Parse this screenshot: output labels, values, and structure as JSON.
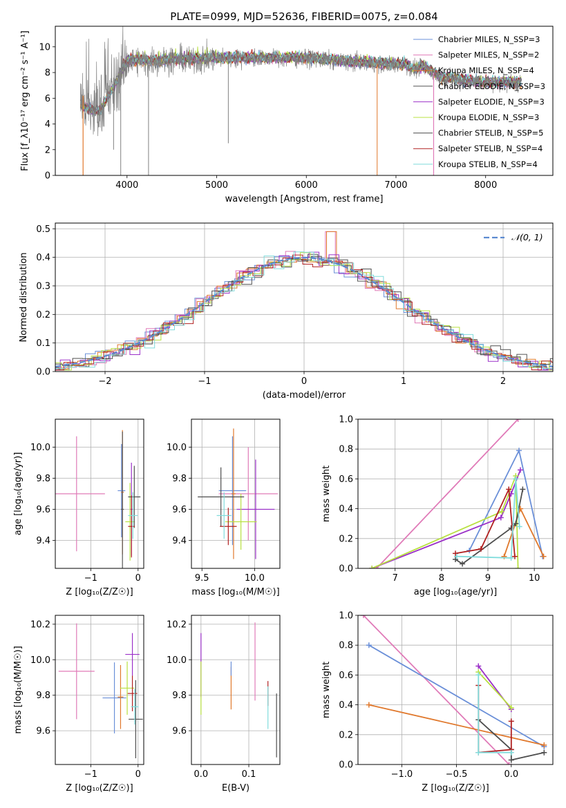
{
  "figure_title": "PLATE=0999, MJD=52636, FIBERID=0075, z=0.084",
  "colors": {
    "chabrier_miles": "#6a8fd8",
    "salpeter_miles": "#e07ab8",
    "kroupa_miles": "#e0782c",
    "chabrier_elodie": "#555555",
    "salpeter_elodie": "#9b30c8",
    "kroupa_elodie": "#b8e040",
    "chabrier_stelib": "#4d4d4d",
    "salpeter_stelib": "#b02020",
    "kroupa_stelib": "#80dcdc",
    "observed": "#808080",
    "normal": "#5b8ad0"
  },
  "chart_data": [
    {
      "id": "spectrum",
      "type": "line",
      "title": "PLATE=0999, MJD=52636, FIBERID=0075, z=0.084",
      "xlabel": "wavelength [Angstrom, rest frame]",
      "ylabel": "Flux [f_λ10⁻¹⁷ erg cm⁻² s⁻¹ A⁻¹]",
      "xlim": [
        3200,
        8750
      ],
      "ylim": [
        0,
        11.6
      ],
      "xticks": [
        4000,
        5000,
        6000,
        7000,
        8000
      ],
      "yticks": [
        0,
        2,
        4,
        6,
        8,
        10
      ],
      "legend_position": "top-right",
      "legend": [
        {
          "label": "Chabrier MILES, N_SSP=3",
          "color_key": "chabrier_miles"
        },
        {
          "label": "Salpeter MILES, N_SSP=2",
          "color_key": "salpeter_miles"
        },
        {
          "label": "Kroupa MILES, N_SSP=4",
          "color_key": "kroupa_miles"
        },
        {
          "label": "Chabrier ELODIE, N_SSP=3",
          "color_key": "chabrier_elodie"
        },
        {
          "label": "Salpeter ELODIE, N_SSP=3",
          "color_key": "salpeter_elodie"
        },
        {
          "label": "Kroupa ELODIE, N_SSP=3",
          "color_key": "kroupa_elodie"
        },
        {
          "label": "Chabrier STELIB, N_SSP=5",
          "color_key": "chabrier_stelib"
        },
        {
          "label": "Salpeter STELIB, N_SSP=4",
          "color_key": "salpeter_stelib"
        },
        {
          "label": "Kroupa STELIB, N_SSP=4",
          "color_key": "kroupa_stelib"
        }
      ],
      "observed_continuum": {
        "x": [
          3480,
          3600,
          3700,
          3800,
          3900,
          4000,
          4100,
          4300,
          4500,
          4800,
          5000,
          5500,
          6000,
          6500,
          7000,
          7100,
          7200,
          7300,
          7500,
          8000,
          8400
        ],
        "y": [
          5.6,
          5.1,
          5.0,
          6.3,
          7.5,
          8.9,
          8.9,
          8.9,
          9.0,
          9.0,
          9.1,
          9.1,
          9.1,
          8.8,
          8.6,
          8.6,
          8.2,
          8.5,
          7.6,
          7.2,
          7.2
        ]
      },
      "dips": [
        {
          "x": 3850,
          "y": 2.0
        },
        {
          "x": 3930,
          "y": 0.0
        },
        {
          "x": 4240,
          "y": 0.0
        },
        {
          "x": 5130,
          "y": 2.5
        },
        {
          "x": 6790,
          "y": 0.0
        }
      ]
    },
    {
      "id": "residuals",
      "type": "line",
      "xlabel": "(data-model)/error",
      "ylabel": "Normed distribution",
      "xlim": [
        -2.5,
        2.5
      ],
      "ylim": [
        0,
        0.52
      ],
      "xticks": [
        -2,
        -1,
        0,
        1,
        2
      ],
      "yticks": [
        0.0,
        0.1,
        0.2,
        0.3,
        0.4,
        0.5
      ],
      "grid": true,
      "legend_position": "top-right",
      "legend": [
        {
          "label": "𝒩(0, 1)",
          "color_key": "normal"
        }
      ],
      "bin_width": 0.1
    },
    {
      "id": "age_vs_z",
      "type": "scatter",
      "xlabel": "Z [log₁₀(Z/Z☉)]",
      "ylabel": "age  [log₁₀(age/yr)]",
      "xlim": [
        -1.75,
        0.12
      ],
      "ylim": [
        9.22,
        10.18
      ],
      "xticks": [
        -1,
        0
      ],
      "yticks": [
        9.4,
        9.6,
        9.8,
        10.0
      ],
      "grid": true,
      "points": [
        {
          "color_key": "salpeter_miles",
          "x": -1.3,
          "y": 9.7,
          "xerr": 0.6,
          "yerr": 0.37
        },
        {
          "color_key": "chabrier_miles",
          "x": -0.35,
          "y": 9.72,
          "xerr": 0.08,
          "yerr": 0.3
        },
        {
          "color_key": "kroupa_miles",
          "x": -0.33,
          "y": 9.71,
          "xerr": 0.03,
          "yerr": 0.4
        },
        {
          "color_key": "salpeter_elodie",
          "x": -0.14,
          "y": 9.6,
          "xerr": 0.03,
          "yerr": 0.3
        },
        {
          "color_key": "kroupa_elodie",
          "x": -0.17,
          "y": 9.52,
          "xerr": 0.1,
          "yerr": 0.25
        },
        {
          "color_key": "chabrier_stelib",
          "x": -0.08,
          "y": 9.68,
          "xerr": 0.13,
          "yerr": 0.2
        },
        {
          "color_key": "salpeter_stelib",
          "x": -0.14,
          "y": 9.49,
          "xerr": 0.07,
          "yerr": 0.2
        },
        {
          "color_key": "kroupa_stelib",
          "x": -0.11,
          "y": 9.56,
          "xerr": 0.1,
          "yerr": 0.15
        },
        {
          "color_key": "chabrier_elodie",
          "x": -0.33,
          "y": 9.6,
          "xerr": 0.03,
          "yerr": 0.5
        }
      ]
    },
    {
      "id": "age_vs_mass",
      "type": "scatter",
      "xlabel": "mass [log₁₀(M/M☉)]",
      "ylabel": "",
      "xlim": [
        9.4,
        10.24
      ],
      "ylim": [
        9.22,
        10.18
      ],
      "xticks": [
        9.5,
        10.0
      ],
      "yticks": [
        9.4,
        9.6,
        9.8,
        10.0
      ],
      "grid": true,
      "points": [
        {
          "color_key": "salpeter_miles",
          "x": 9.94,
          "y": 9.7,
          "xerr": 0.28,
          "yerr": 0.3
        },
        {
          "color_key": "chabrier_miles",
          "x": 9.79,
          "y": 9.72,
          "xerr": 0.13,
          "yerr": 0.35
        },
        {
          "color_key": "kroupa_miles",
          "x": 9.8,
          "y": 9.7,
          "xerr": 0.02,
          "yerr": 0.42
        },
        {
          "color_key": "salpeter_elodie",
          "x": 10.01,
          "y": 9.6,
          "xerr": 0.18,
          "yerr": 0.32
        },
        {
          "color_key": "kroupa_elodie",
          "x": 9.87,
          "y": 9.52,
          "xerr": 0.15,
          "yerr": 0.18
        },
        {
          "color_key": "chabrier_stelib",
          "x": 9.68,
          "y": 9.68,
          "xerr": 0.22,
          "yerr": 0.19
        },
        {
          "color_key": "salpeter_stelib",
          "x": 9.75,
          "y": 9.49,
          "xerr": 0.08,
          "yerr": 0.12
        },
        {
          "color_key": "kroupa_stelib",
          "x": 9.71,
          "y": 9.56,
          "xerr": 0.07,
          "yerr": 0.15
        }
      ]
    },
    {
      "id": "weight_vs_age",
      "type": "line",
      "xlabel": "age  [log₁₀(age/yr)]",
      "ylabel": "mass weight",
      "xlim": [
        6.2,
        10.4
      ],
      "ylim": [
        0,
        1.0
      ],
      "xticks": [
        7,
        8,
        9,
        10
      ],
      "yticks": [
        0.0,
        0.2,
        0.4,
        0.6,
        0.8,
        1.0
      ],
      "grid": true,
      "series": [
        {
          "color_key": "salpeter_miles",
          "x": [
            6.6,
            9.65
          ],
          "y": [
            0.0,
            1.0
          ]
        },
        {
          "color_key": "chabrier_miles",
          "x": [
            8.6,
            9.67,
            10.18
          ],
          "y": [
            0.12,
            0.79,
            0.08
          ]
        },
        {
          "color_key": "kroupa_miles",
          "x": [
            9.35,
            9.7,
            10.2
          ],
          "y": [
            0.08,
            0.4,
            0.08
          ]
        },
        {
          "color_key": "salpeter_elodie",
          "x": [
            6.5,
            9.28,
            9.5,
            9.7
          ],
          "y": [
            0.0,
            0.34,
            0.5,
            0.66
          ]
        },
        {
          "color_key": "kroupa_elodie",
          "x": [
            6.5,
            9.3,
            9.6,
            9.65
          ],
          "y": [
            0.0,
            0.38,
            0.62,
            0.0
          ]
        },
        {
          "color_key": "chabrier_stelib",
          "x": [
            8.3,
            8.45,
            9.5,
            9.6,
            9.75
          ],
          "y": [
            0.06,
            0.03,
            0.27,
            0.3,
            0.53
          ]
        },
        {
          "color_key": "salpeter_stelib",
          "x": [
            8.3,
            8.85,
            9.45,
            9.58
          ],
          "y": [
            0.1,
            0.13,
            0.53,
            0.08
          ]
        },
        {
          "color_key": "kroupa_stelib",
          "x": [
            8.33,
            9.5,
            9.6,
            9.68
          ],
          "y": [
            0.08,
            0.07,
            0.6,
            0.28
          ]
        }
      ]
    },
    {
      "id": "mass_vs_z",
      "type": "scatter",
      "xlabel": "Z [log₁₀(Z/Z☉)]",
      "ylabel": "mass [log₁₀(M/M☉)]",
      "xlim": [
        -1.75,
        0.12
      ],
      "ylim": [
        9.41,
        10.25
      ],
      "xticks": [
        -1,
        0
      ],
      "yticks": [
        9.6,
        9.8,
        10.0,
        10.2
      ],
      "grid": true,
      "points": [
        {
          "color_key": "salpeter_miles",
          "x": -1.3,
          "y": 9.935,
          "xerr": 0.38,
          "yerr": 0.27
        },
        {
          "color_key": "chabrier_miles",
          "x": -0.5,
          "y": 9.785,
          "xerr": 0.25,
          "yerr": 0.2
        },
        {
          "color_key": "kroupa_miles",
          "x": -0.37,
          "y": 9.79,
          "xerr": 0.06,
          "yerr": 0.18
        },
        {
          "color_key": "salpeter_elodie",
          "x": -0.12,
          "y": 10.03,
          "xerr": 0.15,
          "yerr": 0.12
        },
        {
          "color_key": "kroupa_elodie",
          "x": -0.23,
          "y": 9.84,
          "xerr": 0.15,
          "yerr": 0.15
        },
        {
          "color_key": "chabrier_stelib",
          "x": -0.05,
          "y": 9.665,
          "xerr": 0.15,
          "yerr": 0.22
        },
        {
          "color_key": "salpeter_stelib",
          "x": -0.12,
          "y": 9.81,
          "xerr": 0.1,
          "yerr": 0.1
        },
        {
          "color_key": "kroupa_stelib",
          "x": -0.07,
          "y": 9.735,
          "xerr": 0.08,
          "yerr": 0.1
        }
      ]
    },
    {
      "id": "mass_vs_ebv",
      "type": "scatter",
      "xlabel": "E(B-V)",
      "ylabel": "",
      "xlim": [
        -0.02,
        0.165
      ],
      "ylim": [
        9.41,
        10.25
      ],
      "xticks": [
        0.0,
        0.1
      ],
      "yticks": [
        9.6,
        9.8,
        10.0,
        10.2
      ],
      "grid": true,
      "points": [
        {
          "color_key": "salpeter_elodie",
          "x": 0.0,
          "y": 9.97,
          "xerr": 0,
          "yerr": 0.18
        },
        {
          "color_key": "kroupa_elodie",
          "x": 0.0,
          "y": 9.84,
          "xerr": 0,
          "yerr": 0.15
        },
        {
          "color_key": "kroupa_miles",
          "x": 0.063,
          "y": 9.84,
          "xerr": 0,
          "yerr": 0.12
        },
        {
          "color_key": "chabrier_miles",
          "x": 0.063,
          "y": 9.95,
          "xerr": 0,
          "yerr": 0.04
        },
        {
          "color_key": "salpeter_miles",
          "x": 0.113,
          "y": 9.99,
          "xerr": 0,
          "yerr": 0.22
        },
        {
          "color_key": "salpeter_stelib",
          "x": 0.14,
          "y": 9.81,
          "xerr": 0,
          "yerr": 0.07
        },
        {
          "color_key": "kroupa_stelib",
          "x": 0.14,
          "y": 9.73,
          "xerr": 0,
          "yerr": 0.12
        },
        {
          "color_key": "chabrier_stelib",
          "x": 0.158,
          "y": 9.63,
          "xerr": 0,
          "yerr": 0.18
        }
      ]
    },
    {
      "id": "weight_vs_z",
      "type": "line",
      "xlabel": "Z [log₁₀(Z/Z☉)]",
      "ylabel": "mass weight",
      "xlim": [
        -1.4,
        0.38
      ],
      "ylim": [
        0,
        1.0
      ],
      "xticks": [
        -1.0,
        -0.5,
        0.0
      ],
      "yticks": [
        0.0,
        0.2,
        0.4,
        0.6,
        0.8,
        1.0
      ],
      "grid": true,
      "series": [
        {
          "color_key": "salpeter_miles",
          "x": [
            -1.35,
            -0.02
          ],
          "y": [
            1.0,
            0.0
          ]
        },
        {
          "color_key": "chabrier_miles",
          "x": [
            -1.3,
            0.3
          ],
          "y": [
            0.8,
            0.12
          ]
        },
        {
          "color_key": "kroupa_miles",
          "x": [
            -1.3,
            0.3
          ],
          "y": [
            0.4,
            0.13
          ]
        },
        {
          "color_key": "salpeter_elodie",
          "x": [
            -0.3,
            0.0
          ],
          "y": [
            0.66,
            0.37
          ]
        },
        {
          "color_key": "kroupa_elodie",
          "x": [
            -0.3,
            0.0
          ],
          "y": [
            0.62,
            0.38
          ]
        },
        {
          "color_key": "chabrier_stelib",
          "x": [
            -0.3,
            0.0,
            0.0,
            0.3
          ],
          "y": [
            0.3,
            0.1,
            0.03,
            0.08
          ]
        },
        {
          "color_key": "salpeter_stelib",
          "x": [
            -0.3,
            -0.3,
            0.0,
            0.0
          ],
          "y": [
            0.53,
            0.08,
            0.1,
            0.29
          ]
        },
        {
          "color_key": "kroupa_stelib",
          "x": [
            -0.3,
            -0.3,
            0.0
          ],
          "y": [
            0.6,
            0.08,
            0.08
          ]
        }
      ]
    }
  ]
}
